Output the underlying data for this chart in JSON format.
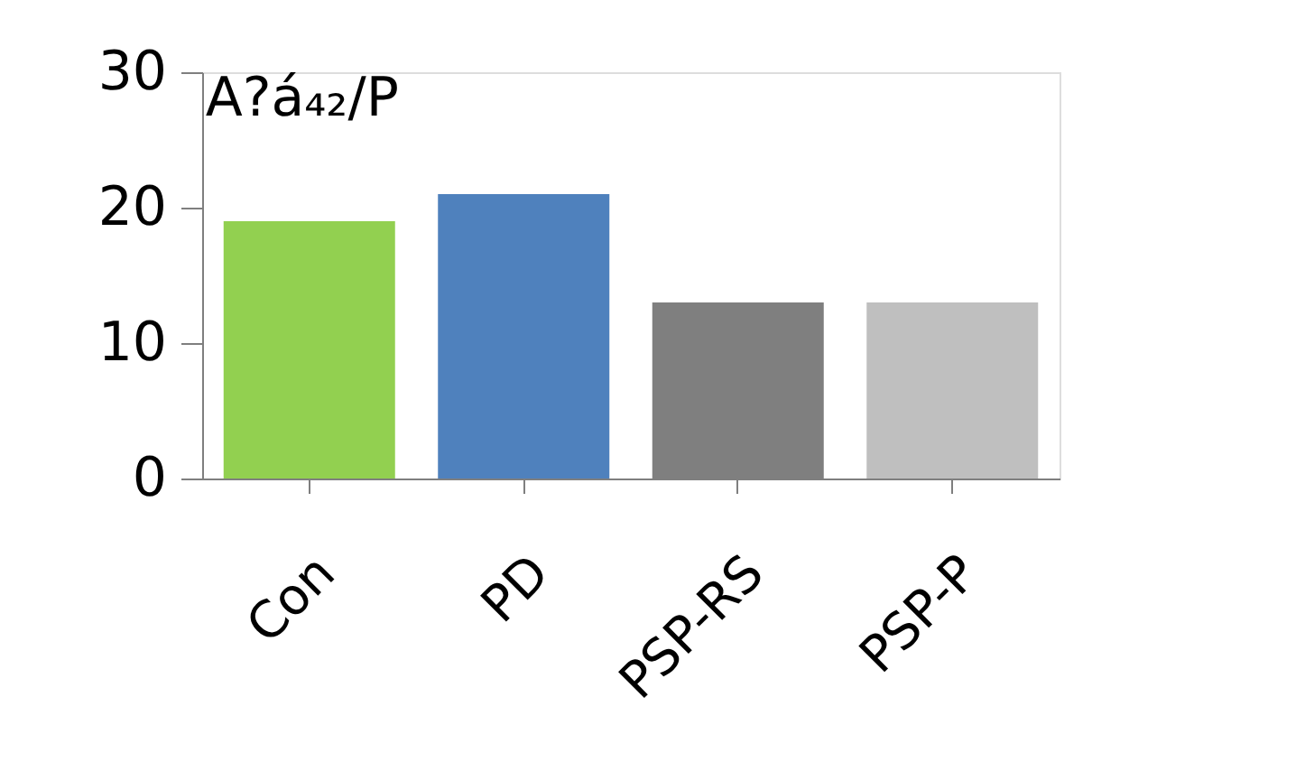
{
  "chart_data": {
    "type": "bar",
    "title": "A?á₄₂/P",
    "categories": [
      "Con",
      "PD",
      "PSP-RS",
      "PSP-P"
    ],
    "values": [
      19,
      21,
      13,
      13
    ],
    "colors": [
      "#92d050",
      "#4f81bd",
      "#7f7f7f",
      "#bfbfbf"
    ],
    "ylim": [
      0,
      30
    ],
    "yticks": [
      0,
      10,
      20,
      30
    ],
    "grid": false,
    "legend": false
  }
}
